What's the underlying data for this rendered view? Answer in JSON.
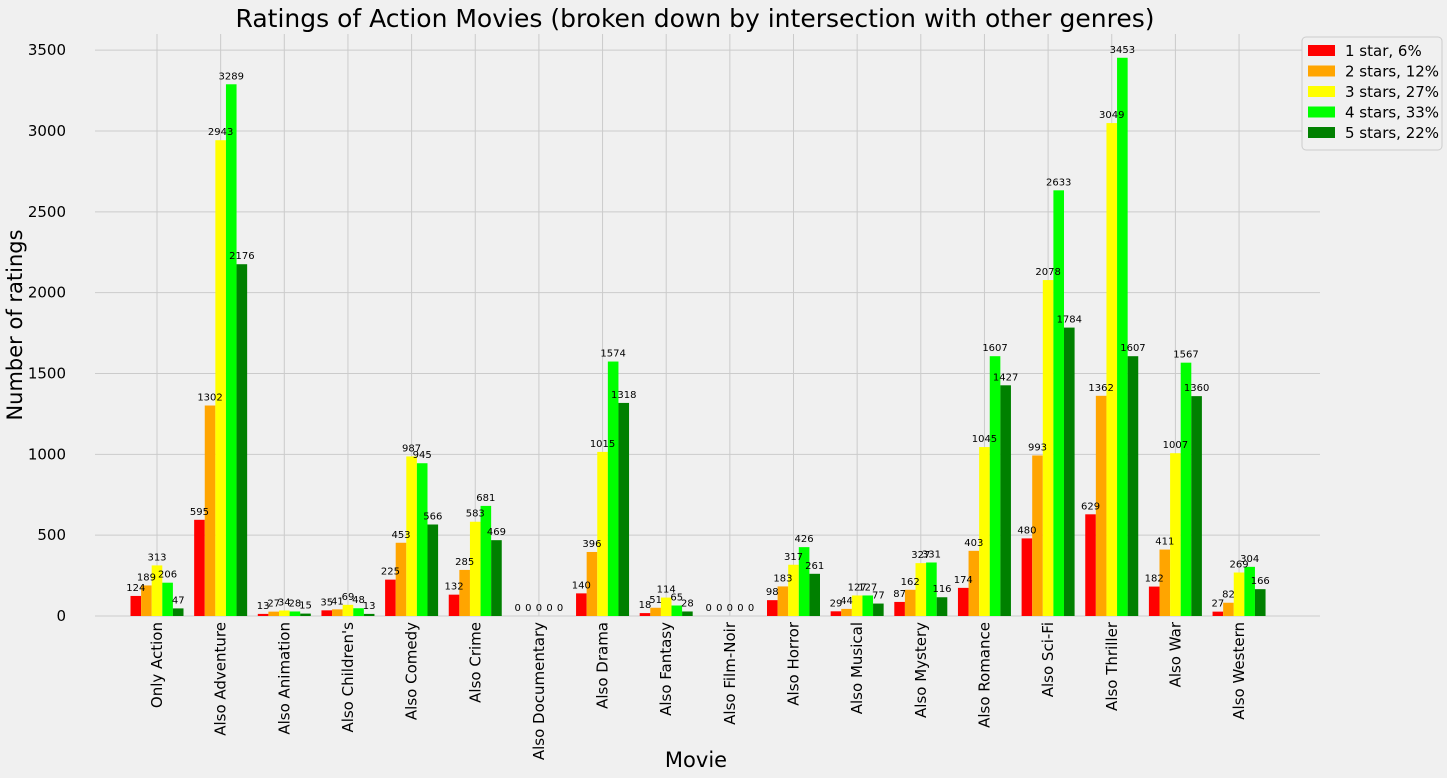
{
  "chart_data": {
    "type": "bar",
    "title": "Ratings of Action Movies (broken down by intersection with other genres)",
    "xlabel": "Movie",
    "ylabel": "Number of ratings",
    "ylim": [
      0,
      3600
    ],
    "yticks": [
      0,
      500,
      1000,
      1500,
      2000,
      2500,
      3000,
      3500
    ],
    "grid": true,
    "legend_position": "top-right",
    "categories": [
      "Only Action",
      "Also Adventure",
      "Also Animation",
      "Also Children's",
      "Also Comedy",
      "Also Crime",
      "Also Documentary",
      "Also Drama",
      "Also Fantasy",
      "Also Film-Noir",
      "Also Horror",
      "Also Musical",
      "Also Mystery",
      "Also Romance",
      "Also Sci-Fi",
      "Also Thriller",
      "Also War",
      "Also Western"
    ],
    "series": [
      {
        "name": "1 star, 6%",
        "color": "#ff0000",
        "values": [
          124,
          595,
          13,
          35,
          225,
          132,
          0,
          140,
          18,
          0,
          98,
          29,
          87,
          174,
          480,
          629,
          182,
          27
        ]
      },
      {
        "name": "2 stars, 12%",
        "color": "#ffa500",
        "values": [
          189,
          1302,
          27,
          41,
          453,
          285,
          0,
          396,
          51,
          0,
          183,
          44,
          162,
          403,
          993,
          1362,
          411,
          82
        ]
      },
      {
        "name": "3 stars, 27%",
        "color": "#ffff00",
        "values": [
          313,
          2943,
          34,
          69,
          987,
          583,
          0,
          1015,
          114,
          0,
          317,
          127,
          327,
          1045,
          2078,
          3049,
          1007,
          269
        ]
      },
      {
        "name": "4 stars, 33%",
        "color": "#00ff00",
        "values": [
          206,
          3289,
          28,
          48,
          945,
          681,
          0,
          1574,
          65,
          0,
          426,
          127,
          331,
          1607,
          2633,
          3453,
          1567,
          304
        ]
      },
      {
        "name": "5 stars, 22%",
        "color": "#008000",
        "values": [
          47,
          2176,
          15,
          13,
          566,
          469,
          0,
          1318,
          28,
          0,
          261,
          77,
          116,
          1427,
          1784,
          1607,
          1360,
          166
        ]
      }
    ]
  }
}
